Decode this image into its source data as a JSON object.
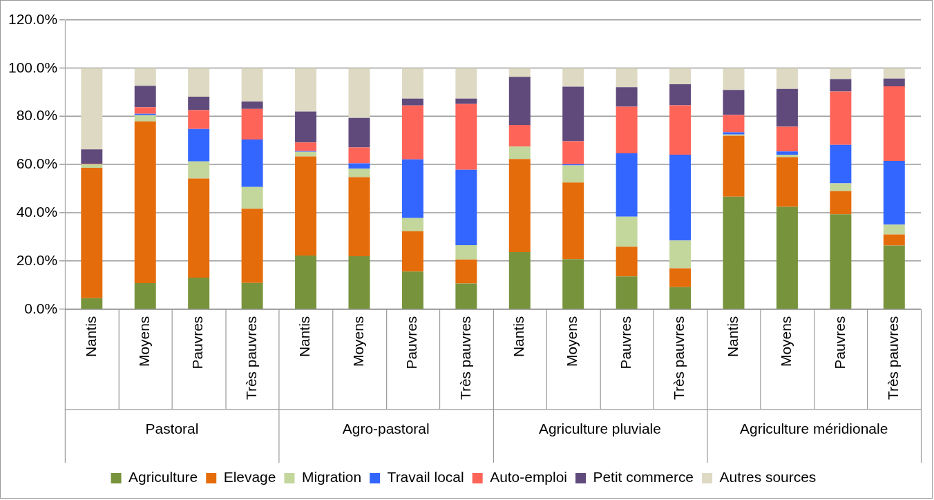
{
  "chart_data": {
    "type": "bar",
    "stacked": true,
    "categories": [
      "Nantis",
      "Moyens",
      "Pauvres",
      "Très pauvres",
      "Nantis",
      "Moyens",
      "Pauvres",
      "Très pauvres",
      "Nantis",
      "Moyens",
      "Pauvres",
      "Très pauvres",
      "Nantis",
      "Moyens",
      "Pauvres",
      "Très pauvres"
    ],
    "annotations": [
      "Pastoral",
      "Agro-pastoral",
      "Agriculture pluviale",
      "Agriculture méridionale"
    ],
    "series": [
      {
        "name": "Agriculture",
        "color": "#77933c",
        "values": [
          4.6,
          10.8,
          13.1,
          10.9,
          22.3,
          22.0,
          15.6,
          10.7,
          23.7,
          20.8,
          13.6,
          9.2,
          46.7,
          42.5,
          39.4,
          26.4
        ]
      },
      {
        "name": "Elevage",
        "color": "#e46c0a",
        "values": [
          54.1,
          67.1,
          41.1,
          30.8,
          41.1,
          32.8,
          16.8,
          9.9,
          38.6,
          31.8,
          12.3,
          7.8,
          25.3,
          20.6,
          9.6,
          4.6
        ]
      },
      {
        "name": "Migration",
        "color": "#c3d69b",
        "values": [
          1.5,
          2.6,
          7.1,
          9.0,
          1.9,
          3.5,
          5.4,
          6.0,
          5.2,
          7.1,
          12.5,
          11.5,
          0.5,
          1.0,
          3.2,
          4.1
        ]
      },
      {
        "name": "Travail local",
        "color": "#3366ff",
        "values": [
          0,
          0.6,
          13.5,
          19.7,
          0.3,
          2.2,
          24.4,
          31.3,
          0,
          0.5,
          26.3,
          35.6,
          0.9,
          1.4,
          16.0,
          26.4
        ]
      },
      {
        "name": "Auto-emploi",
        "color": "#ff6459",
        "values": [
          0.2,
          2.7,
          7.8,
          12.7,
          3.6,
          6.6,
          22.3,
          27.3,
          8.9,
          9.5,
          19.3,
          20.5,
          7.2,
          10.2,
          22.1,
          31.0
        ]
      },
      {
        "name": "Petit commerce",
        "color": "#604a7b",
        "values": [
          5.9,
          8.9,
          5.6,
          3.1,
          12.8,
          12.3,
          2.9,
          2.2,
          20.0,
          22.6,
          8.1,
          8.7,
          10.4,
          15.7,
          5.2,
          3.2
        ]
      },
      {
        "name": "Autres sources",
        "color": "#ddd9c3",
        "values": [
          33.7,
          7.3,
          11.8,
          13.8,
          18.0,
          20.6,
          12.6,
          12.6,
          3.6,
          7.7,
          7.9,
          6.7,
          9.0,
          8.6,
          4.5,
          4.3
        ]
      }
    ],
    "ylim": [
      0,
      120
    ],
    "yticks": [
      {
        "value": 0,
        "label": "0.0%"
      },
      {
        "value": 20,
        "label": "20.0%"
      },
      {
        "value": 40,
        "label": "40.0%"
      },
      {
        "value": 60,
        "label": "60.0%"
      },
      {
        "value": 80,
        "label": "80.0%"
      },
      {
        "value": 100,
        "label": "100.0%"
      },
      {
        "value": 120,
        "label": "120.0%"
      }
    ],
    "grid": "y",
    "legend": "bottom"
  }
}
